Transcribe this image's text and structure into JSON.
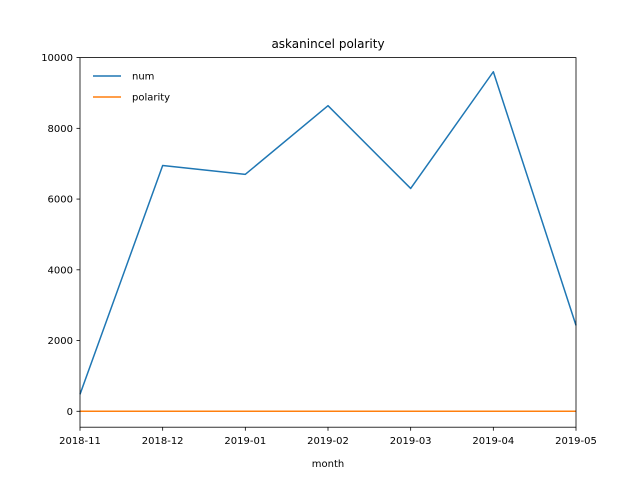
{
  "chart_data": {
    "type": "line",
    "title": "askanincel polarity",
    "xlabel": "month",
    "ylabel": "",
    "x": [
      "2018-11",
      "2018-12",
      "2019-01",
      "2019-02",
      "2019-03",
      "2019-04",
      "2019-05"
    ],
    "x_tick_labels": [
      "2018-11",
      "2018-12",
      "2019-01",
      "2019-02",
      "2019-03",
      "2019-04",
      "2019-05"
    ],
    "ylim": [
      -450,
      10000
    ],
    "y_ticks": [
      0,
      2000,
      4000,
      6000,
      8000,
      10000
    ],
    "grid": false,
    "legend_position": "top-left",
    "series": [
      {
        "name": "num",
        "color": "#1f77b4",
        "values": [
          480,
          6950,
          6700,
          8640,
          6300,
          9600,
          2430
        ]
      },
      {
        "name": "polarity",
        "color": "#ff7f0e",
        "values": [
          0.1,
          0.1,
          0.1,
          0.1,
          0.1,
          0.1,
          0.1
        ]
      }
    ]
  }
}
